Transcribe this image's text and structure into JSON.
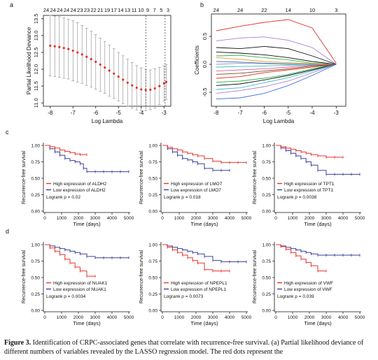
{
  "figure": {
    "panel_a": {
      "letter": "a",
      "top_ticks": [
        "24",
        "24",
        "24",
        "24",
        "24",
        "23",
        "23",
        "22",
        "21",
        "19",
        "17",
        "14",
        "13",
        "11",
        "10",
        "9",
        "7",
        "5",
        "3"
      ],
      "chart_data": {
        "type": "line",
        "xlabel": "Log Lambda",
        "ylabel": "Partial Likelihood Deviance",
        "xlim": [
          -8.3,
          -2.7
        ],
        "ylim": [
          10.9,
          13.6
        ],
        "x_ticks": [
          "-8",
          "-7",
          "-6",
          "-5",
          "-4",
          "-3"
        ],
        "y_ticks": [
          "11.0",
          "11.5",
          "12.0",
          "12.5",
          "13.0",
          "13.5"
        ],
        "lambda_min": -3.8,
        "lambda_1se": -2.95,
        "points_x": [
          -8.0,
          -7.8,
          -7.6,
          -7.4,
          -7.2,
          -7.0,
          -6.8,
          -6.6,
          -6.4,
          -6.2,
          -6.0,
          -5.8,
          -5.6,
          -5.4,
          -5.2,
          -5.0,
          -4.8,
          -4.6,
          -4.4,
          -4.2,
          -4.0,
          -3.8,
          -3.6,
          -3.4,
          -3.2,
          -3.0,
          -2.9
        ],
        "points_y": [
          12.7,
          12.68,
          12.66,
          12.63,
          12.6,
          12.55,
          12.5,
          12.44,
          12.37,
          12.3,
          12.22,
          12.14,
          12.05,
          11.96,
          11.87,
          11.78,
          11.69,
          11.6,
          11.52,
          11.45,
          11.4,
          11.38,
          11.39,
          11.43,
          11.5,
          11.58,
          11.62
        ],
        "err_upper": [
          13.6,
          13.58,
          13.56,
          13.53,
          13.49,
          13.44,
          13.38,
          13.3,
          13.22,
          13.13,
          13.03,
          12.93,
          12.82,
          12.72,
          12.61,
          12.5,
          12.4,
          12.3,
          12.2,
          12.11,
          12.04,
          11.99,
          11.98,
          12.01,
          12.05,
          12.1,
          12.14
        ],
        "err_lower": [
          11.8,
          11.78,
          11.76,
          11.73,
          11.71,
          11.66,
          11.62,
          11.58,
          11.52,
          11.47,
          11.41,
          11.35,
          11.28,
          11.2,
          11.13,
          11.06,
          10.98,
          10.9,
          10.84,
          10.79,
          10.76,
          10.77,
          10.8,
          10.85,
          10.95,
          11.06,
          11.1
        ]
      }
    },
    "panel_b": {
      "letter": "b",
      "top_ticks": [
        "24",
        "24",
        "22",
        "14",
        "10",
        "3"
      ],
      "chart_data": {
        "type": "line",
        "xlabel": "Log Lambda",
        "ylabel": "Coefficients",
        "xlim": [
          -8.2,
          -2.6
        ],
        "ylim": [
          -0.75,
          0.9
        ],
        "x_ticks": [
          "-8",
          "-7",
          "-6",
          "-5",
          "-4",
          "-3"
        ],
        "y_ticks": [
          "-0.5",
          "0.0",
          "0.5"
        ],
        "x": [
          -8.0,
          -7.0,
          -6.0,
          -5.0,
          -4.0,
          -3.0
        ],
        "series": [
          {
            "color": "#e0322a",
            "values": [
              0.6,
              0.68,
              0.75,
              0.8,
              0.65,
              0.02
            ]
          },
          {
            "color": "#b07ad0",
            "values": [
              0.42,
              0.47,
              0.49,
              0.43,
              0.3,
              0.0
            ]
          },
          {
            "color": "#111111",
            "values": [
              0.3,
              0.28,
              0.32,
              0.28,
              0.15,
              0.0
            ]
          },
          {
            "color": "#111111",
            "values": [
              0.22,
              0.2,
              0.17,
              0.12,
              0.05,
              0.0
            ]
          },
          {
            "color": "#2bb24c",
            "values": [
              0.15,
              0.16,
              0.12,
              0.08,
              0.02,
              0.0
            ]
          },
          {
            "color": "#e0a020",
            "values": [
              0.12,
              0.09,
              0.05,
              0.03,
              0.01,
              0.0
            ]
          },
          {
            "color": "#3f6fe0",
            "values": [
              0.05,
              0.04,
              0.02,
              0.01,
              0.0,
              0.0
            ]
          },
          {
            "color": "#999999",
            "values": [
              0.0,
              0.02,
              0.01,
              0.0,
              0.0,
              0.0
            ]
          },
          {
            "color": "#38c0c8",
            "values": [
              -0.05,
              -0.04,
              -0.03,
              -0.02,
              -0.01,
              0.0
            ]
          },
          {
            "color": "#e060a0",
            "values": [
              -0.12,
              -0.1,
              -0.08,
              -0.05,
              -0.02,
              0.0
            ]
          },
          {
            "color": "#7a4a20",
            "values": [
              -0.18,
              -0.16,
              -0.12,
              -0.08,
              -0.03,
              0.0
            ]
          },
          {
            "color": "#e0322a",
            "values": [
              -0.25,
              -0.22,
              -0.15,
              -0.1,
              -0.05,
              0.0
            ]
          },
          {
            "color": "#2bb24c",
            "values": [
              -0.32,
              -0.3,
              -0.25,
              -0.18,
              -0.08,
              0.0
            ]
          },
          {
            "color": "#111111",
            "values": [
              -0.38,
              -0.35,
              -0.28,
              -0.2,
              -0.1,
              0.0
            ]
          },
          {
            "color": "#38c0c8",
            "values": [
              -0.45,
              -0.42,
              -0.33,
              -0.24,
              -0.12,
              0.0
            ]
          },
          {
            "color": "#b07ad0",
            "values": [
              -0.52,
              -0.47,
              -0.4,
              -0.3,
              -0.15,
              0.0
            ]
          },
          {
            "color": "#3f6fe0",
            "values": [
              -0.62,
              -0.6,
              -0.52,
              -0.38,
              -0.2,
              0.0
            ]
          }
        ]
      }
    },
    "km_common": {
      "ylabel": "Recurrence-free survival",
      "xlabel": "Time (days)",
      "y_ticks": [
        "0.00",
        "0.25",
        "0.50",
        "0.75",
        "1.00"
      ],
      "x_ticks": [
        "0",
        "1000",
        "2000",
        "3000",
        "4000",
        "5000"
      ],
      "high_color": "#e8342c",
      "low_color": "#3a3f9c"
    },
    "row_c_letter": "c",
    "row_d_letter": "d",
    "km_panels": [
      {
        "gene": "ALDH2",
        "high_label": "High expression of ALDH2",
        "low_label": "Low expression of ALDH2",
        "logrank": "Logrank p = 0.02",
        "chart_data": {
          "type": "line",
          "xlim": [
            0,
            5000
          ],
          "ylim": [
            0,
            1
          ],
          "high": {
            "t": [
              0,
              300,
              600,
              900,
              1200,
              1500,
              1800,
              2100,
              2500
            ],
            "s": [
              1.0,
              0.98,
              0.96,
              0.93,
              0.91,
              0.89,
              0.87,
              0.86,
              0.86
            ]
          },
          "low": {
            "t": [
              0,
              300,
              600,
              900,
              1200,
              1500,
              1800,
              2100,
              2300,
              2500,
              3000,
              3500,
              4000,
              4500,
              5000
            ],
            "s": [
              1.0,
              0.95,
              0.9,
              0.85,
              0.8,
              0.77,
              0.75,
              0.72,
              0.65,
              0.6,
              0.6,
              0.6,
              0.6,
              0.6,
              0.6
            ]
          }
        }
      },
      {
        "gene": "LMO7",
        "high_label": "High expression of LMO7",
        "low_label": "Low expression of LMO7",
        "logrank": "Logrank p = 0.018",
        "chart_data": {
          "type": "line",
          "xlim": [
            0,
            5000
          ],
          "ylim": [
            0,
            1
          ],
          "high": {
            "t": [
              0,
              300,
              600,
              900,
              1200,
              1500,
              1800,
              2100,
              2500,
              3000,
              3500,
              4000,
              4500,
              5000
            ],
            "s": [
              1.0,
              0.97,
              0.95,
              0.93,
              0.9,
              0.88,
              0.86,
              0.84,
              0.8,
              0.76,
              0.74,
              0.74,
              0.74,
              0.74
            ]
          },
          "low": {
            "t": [
              0,
              300,
              600,
              900,
              1200,
              1500,
              1800,
              2100,
              2500,
              3000,
              3500,
              4000
            ],
            "s": [
              1.0,
              0.95,
              0.9,
              0.85,
              0.8,
              0.78,
              0.75,
              0.72,
              0.65,
              0.62,
              0.62,
              0.62
            ]
          }
        }
      },
      {
        "gene": "TPT1",
        "high_label": "High expression of TPT1",
        "low_label": "Low expression of TPT1",
        "logrank": "Logrank p = 0.0038",
        "chart_data": {
          "type": "line",
          "xlim": [
            0,
            5000
          ],
          "ylim": [
            0,
            1
          ],
          "high": {
            "t": [
              0,
              300,
              600,
              900,
              1200,
              1500,
              1800,
              2100,
              2500,
              3000,
              3500,
              4000
            ],
            "s": [
              1.0,
              0.98,
              0.96,
              0.94,
              0.92,
              0.9,
              0.88,
              0.86,
              0.84,
              0.82,
              0.82,
              0.82
            ]
          },
          "low": {
            "t": [
              0,
              300,
              600,
              900,
              1200,
              1500,
              1800,
              2100,
              2500,
              3000,
              3500,
              4000,
              4500,
              5000
            ],
            "s": [
              1.0,
              0.96,
              0.92,
              0.88,
              0.84,
              0.8,
              0.75,
              0.7,
              0.62,
              0.56,
              0.56,
              0.56,
              0.56,
              0.56
            ]
          }
        }
      },
      {
        "gene": "NUAK1",
        "high_label": "High expression of NUAK1",
        "low_label": "Low expression of NUAK1",
        "logrank": "Logrank p = 0.0034",
        "chart_data": {
          "type": "line",
          "xlim": [
            0,
            5000
          ],
          "ylim": [
            0,
            1
          ],
          "high": {
            "t": [
              0,
              300,
              600,
              900,
              1200,
              1500,
              1800,
              2100,
              2500,
              3000
            ],
            "s": [
              1.0,
              0.95,
              0.9,
              0.85,
              0.78,
              0.72,
              0.66,
              0.6,
              0.52,
              0.52
            ]
          },
          "low": {
            "t": [
              0,
              300,
              600,
              900,
              1200,
              1500,
              1800,
              2100,
              2500,
              3000,
              3500,
              4000,
              4500,
              5000
            ],
            "s": [
              1.0,
              0.98,
              0.96,
              0.94,
              0.92,
              0.9,
              0.88,
              0.86,
              0.82,
              0.8,
              0.8,
              0.8,
              0.8,
              0.8
            ]
          }
        }
      },
      {
        "gene": "NPEPL1",
        "high_label": "High expression of NPEPL1",
        "low_label": "Low expression of NPEPL1",
        "logrank": "Logrank p = 0.0073",
        "chart_data": {
          "type": "line",
          "xlim": [
            0,
            5000
          ],
          "ylim": [
            0,
            1
          ],
          "high": {
            "t": [
              0,
              300,
              600,
              900,
              1200,
              1500,
              1800,
              2100,
              2500,
              3000,
              3500,
              4000
            ],
            "s": [
              1.0,
              0.96,
              0.92,
              0.88,
              0.84,
              0.8,
              0.76,
              0.72,
              0.62,
              0.6,
              0.6,
              0.6
            ]
          },
          "low": {
            "t": [
              0,
              300,
              600,
              900,
              1200,
              1500,
              1800,
              2100,
              2500,
              3000,
              3500,
              4000,
              4500,
              5000
            ],
            "s": [
              1.0,
              0.98,
              0.96,
              0.94,
              0.92,
              0.9,
              0.88,
              0.86,
              0.82,
              0.76,
              0.74,
              0.74,
              0.74,
              0.74
            ]
          }
        }
      },
      {
        "gene": "VWF",
        "high_label": "High expression of VWF",
        "low_label": "Low expression of VWF",
        "logrank": "Logrank p = 0.039",
        "chart_data": {
          "type": "line",
          "xlim": [
            0,
            5000
          ],
          "ylim": [
            0,
            1
          ],
          "high": {
            "t": [
              0,
              300,
              600,
              900,
              1200,
              1500,
              1800,
              2100,
              2500,
              3000
            ],
            "s": [
              1.0,
              0.97,
              0.93,
              0.88,
              0.83,
              0.78,
              0.73,
              0.68,
              0.6,
              0.6
            ]
          },
          "low": {
            "t": [
              0,
              300,
              600,
              900,
              1200,
              1500,
              1800,
              2100,
              2500,
              3000,
              3500,
              4000,
              4500,
              5000
            ],
            "s": [
              1.0,
              0.98,
              0.96,
              0.94,
              0.92,
              0.9,
              0.88,
              0.86,
              0.84,
              0.84,
              0.84,
              0.84,
              0.84,
              0.84
            ]
          }
        }
      }
    ]
  },
  "caption": {
    "label": "Figure 3.",
    "text": "Identification of CRPC-associated genes that correlate with recurrence-free survival. (a) Partial likelihood deviance of different numbers of variables revealed by the LASSO regression model. The red dots represent the"
  }
}
